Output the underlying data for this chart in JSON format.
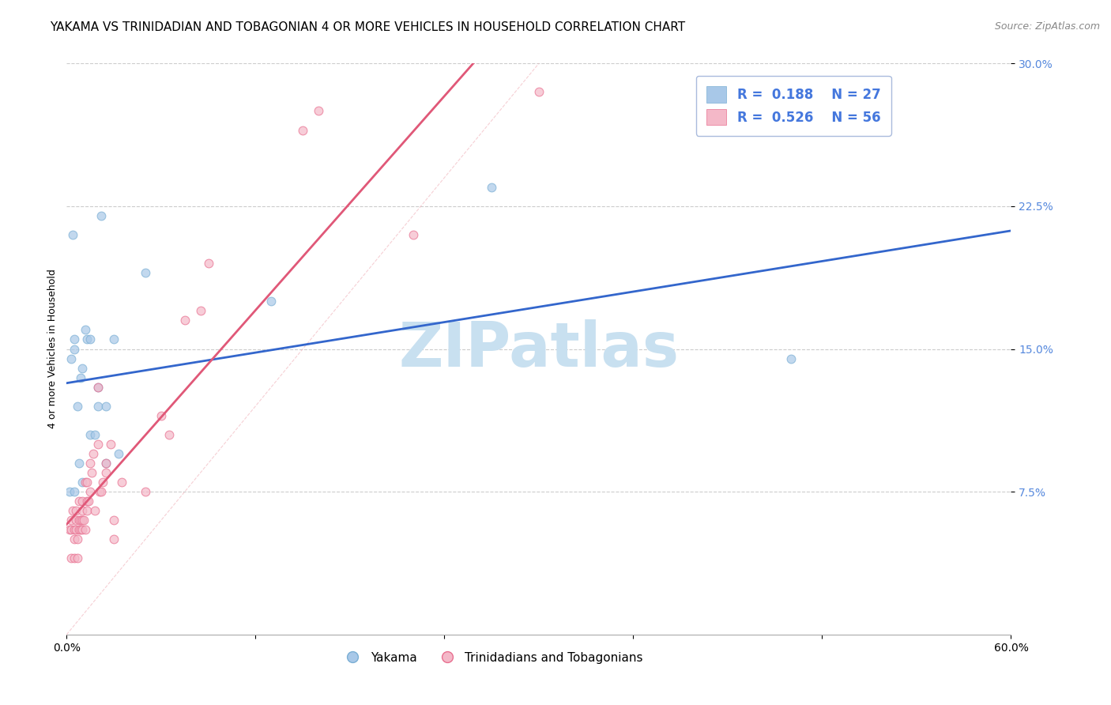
{
  "title": "YAKAMA VS TRINIDADIAN AND TOBAGONIAN 4 OR MORE VEHICLES IN HOUSEHOLD CORRELATION CHART",
  "source": "Source: ZipAtlas.com",
  "ylabel": "4 or more Vehicles in Household",
  "xlim": [
    0.0,
    0.6
  ],
  "ylim": [
    0.0,
    0.3
  ],
  "yticks": [
    0.075,
    0.15,
    0.225,
    0.3
  ],
  "ytick_labels": [
    "7.5%",
    "15.0%",
    "22.5%",
    "30.0%"
  ],
  "xticks": [
    0.0,
    0.12,
    0.24,
    0.36,
    0.48,
    0.6
  ],
  "yakama_color": "#a8c8e8",
  "yakama_edge_color": "#7bafd4",
  "trinidadian_color": "#f4b8c8",
  "trinidadian_edge_color": "#e87090",
  "trend_yakama_color": "#3366cc",
  "trend_trinidadian_color": "#e05878",
  "legend_text_color": "#4477dd",
  "tick_color": "#5588dd",
  "watermark_color": "#c8e0f0",
  "background_color": "#ffffff",
  "grid_color": "#cccccc",
  "legend_box_color": "#aabbdd",
  "yakama_x": [
    0.002,
    0.003,
    0.004,
    0.005,
    0.005,
    0.005,
    0.007,
    0.008,
    0.009,
    0.01,
    0.01,
    0.012,
    0.013,
    0.015,
    0.015,
    0.018,
    0.02,
    0.02,
    0.022,
    0.025,
    0.025,
    0.03,
    0.033,
    0.05,
    0.13,
    0.27,
    0.46
  ],
  "yakama_y": [
    0.075,
    0.145,
    0.21,
    0.15,
    0.155,
    0.075,
    0.12,
    0.09,
    0.135,
    0.08,
    0.14,
    0.16,
    0.155,
    0.105,
    0.155,
    0.105,
    0.13,
    0.12,
    0.22,
    0.09,
    0.12,
    0.155,
    0.095,
    0.19,
    0.175,
    0.235,
    0.145
  ],
  "trinidadian_x": [
    0.002,
    0.003,
    0.003,
    0.003,
    0.004,
    0.005,
    0.005,
    0.005,
    0.006,
    0.006,
    0.006,
    0.007,
    0.007,
    0.008,
    0.008,
    0.008,
    0.009,
    0.009,
    0.01,
    0.01,
    0.01,
    0.01,
    0.011,
    0.012,
    0.012,
    0.013,
    0.013,
    0.013,
    0.014,
    0.015,
    0.015,
    0.016,
    0.017,
    0.018,
    0.02,
    0.02,
    0.021,
    0.022,
    0.023,
    0.025,
    0.025,
    0.028,
    0.03,
    0.03,
    0.035,
    0.05,
    0.06,
    0.065,
    0.075,
    0.085,
    0.09,
    0.15,
    0.16,
    0.22,
    0.3
  ],
  "trinidadian_y": [
    0.055,
    0.04,
    0.055,
    0.06,
    0.065,
    0.04,
    0.05,
    0.055,
    0.055,
    0.06,
    0.065,
    0.04,
    0.05,
    0.055,
    0.06,
    0.07,
    0.055,
    0.06,
    0.055,
    0.06,
    0.065,
    0.07,
    0.06,
    0.055,
    0.08,
    0.065,
    0.07,
    0.08,
    0.07,
    0.075,
    0.09,
    0.085,
    0.095,
    0.065,
    0.13,
    0.1,
    0.075,
    0.075,
    0.08,
    0.085,
    0.09,
    0.1,
    0.05,
    0.06,
    0.08,
    0.075,
    0.115,
    0.105,
    0.165,
    0.17,
    0.195,
    0.265,
    0.275,
    0.21,
    0.285
  ],
  "marker_size": 60,
  "marker_alpha": 0.7,
  "trend_linewidth": 2.0,
  "font_title_size": 11,
  "font_label_size": 9,
  "font_tick_size": 10
}
